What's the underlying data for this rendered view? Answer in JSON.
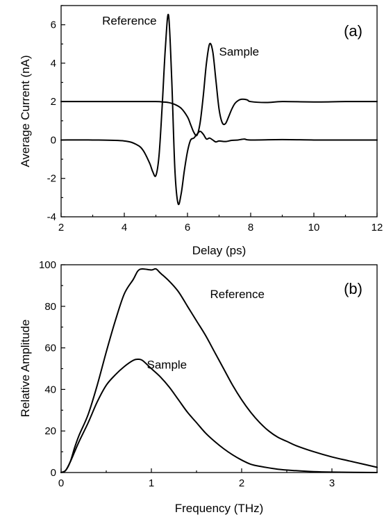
{
  "chart_data": [
    {
      "type": "line",
      "panel_label": "(a)",
      "xlabel": "Delay (ps)",
      "ylabel": "Average Current (nA)",
      "xlim": [
        2,
        12
      ],
      "ylim": [
        -4,
        7
      ],
      "xticks": [
        2,
        4,
        6,
        8,
        10,
        12
      ],
      "yticks": [
        -4,
        -2,
        0,
        2,
        4,
        6
      ],
      "grid": false,
      "series": [
        {
          "name": "Reference",
          "x": [
            2.0,
            3.0,
            4.0,
            4.4,
            4.6,
            4.8,
            4.9,
            5.0,
            5.1,
            5.2,
            5.3,
            5.4,
            5.5,
            5.6,
            5.7,
            5.8,
            5.9,
            6.0,
            6.1,
            6.2,
            6.3,
            6.4,
            6.5,
            6.6,
            6.7,
            6.8,
            6.9,
            7.0,
            7.2,
            7.4,
            7.6,
            7.8,
            8.0,
            9.0,
            10.0,
            11.0,
            12.0
          ],
          "y": [
            0.0,
            0.0,
            -0.05,
            -0.25,
            -0.55,
            -1.2,
            -1.65,
            -1.85,
            -0.8,
            1.8,
            4.8,
            6.5,
            3.2,
            -1.5,
            -3.3,
            -2.8,
            -1.6,
            -0.6,
            0.0,
            0.1,
            0.3,
            0.45,
            0.3,
            0.05,
            0.1,
            0.0,
            -0.1,
            -0.05,
            -0.08,
            -0.02,
            0.0,
            0.05,
            0.0,
            0.02,
            0.0,
            0.0,
            0.0
          ]
        },
        {
          "name": "Sample",
          "x": [
            2.0,
            3.0,
            4.0,
            5.0,
            5.2,
            5.4,
            5.6,
            5.8,
            6.0,
            6.1,
            6.2,
            6.3,
            6.4,
            6.5,
            6.6,
            6.7,
            6.8,
            6.9,
            7.0,
            7.1,
            7.2,
            7.3,
            7.4,
            7.5,
            7.6,
            7.7,
            7.8,
            7.9,
            8.0,
            8.5,
            9.0,
            10.0,
            11.0,
            12.0
          ],
          "y": [
            2.0,
            2.0,
            2.0,
            2.0,
            1.98,
            1.95,
            1.85,
            1.65,
            1.2,
            0.8,
            0.4,
            0.25,
            0.9,
            2.3,
            4.0,
            5.0,
            4.6,
            3.1,
            1.6,
            0.9,
            0.85,
            1.2,
            1.6,
            1.9,
            2.05,
            2.12,
            2.12,
            2.08,
            2.0,
            1.95,
            2.0,
            1.98,
            2.0,
            2.0
          ]
        }
      ],
      "annotations": [
        {
          "text": "Reference",
          "x": 3.3,
          "y": 6.0
        },
        {
          "text": "Sample",
          "x": 7.0,
          "y": 4.4
        }
      ]
    },
    {
      "type": "line",
      "panel_label": "(b)",
      "xlabel": "Frequency (THz)",
      "ylabel": "Relative Amplitude",
      "xlim": [
        0,
        3.5
      ],
      "ylim": [
        0,
        100
      ],
      "xticks": [
        0,
        1,
        2,
        3
      ],
      "yticks": [
        0,
        20,
        40,
        60,
        80,
        100
      ],
      "grid": false,
      "series": [
        {
          "name": "Reference",
          "x": [
            0.0,
            0.05,
            0.1,
            0.15,
            0.2,
            0.3,
            0.4,
            0.5,
            0.6,
            0.7,
            0.8,
            0.85,
            0.9,
            1.0,
            1.05,
            1.1,
            1.2,
            1.3,
            1.4,
            1.5,
            1.6,
            1.7,
            1.8,
            1.9,
            2.0,
            2.1,
            2.2,
            2.3,
            2.4,
            2.5,
            2.6,
            2.8,
            3.0,
            3.2,
            3.5
          ],
          "y": [
            0.0,
            1.0,
            5.0,
            12.0,
            18.0,
            28.0,
            42.0,
            58.0,
            73.0,
            86.0,
            93.0,
            97.0,
            98.0,
            97.5,
            98.0,
            96.0,
            92.0,
            87.0,
            80.0,
            73.0,
            66.0,
            58.0,
            50.0,
            42.0,
            35.0,
            29.0,
            24.0,
            20.0,
            17.0,
            15.0,
            13.0,
            10.0,
            7.5,
            5.5,
            2.5
          ]
        },
        {
          "name": "Sample",
          "x": [
            0.0,
            0.05,
            0.1,
            0.15,
            0.2,
            0.3,
            0.4,
            0.5,
            0.6,
            0.7,
            0.8,
            0.85,
            0.9,
            1.0,
            1.1,
            1.2,
            1.3,
            1.4,
            1.5,
            1.6,
            1.7,
            1.8,
            1.9,
            2.0,
            2.1,
            2.2,
            2.4,
            2.6,
            2.8,
            3.0,
            3.5
          ],
          "y": [
            0.0,
            1.0,
            5.0,
            10.0,
            15.0,
            24.0,
            34.0,
            42.0,
            47.0,
            51.0,
            54.0,
            54.5,
            54.0,
            50.0,
            46.0,
            41.0,
            35.0,
            29.0,
            24.0,
            19.0,
            15.0,
            11.5,
            8.5,
            6.0,
            4.0,
            3.0,
            1.6,
            0.9,
            0.4,
            0.2,
            0.0
          ]
        }
      ],
      "annotations": [
        {
          "text": "Reference",
          "x": 1.65,
          "y": 84.0
        },
        {
          "text": "Sample",
          "x": 0.95,
          "y": 50.0
        }
      ]
    }
  ]
}
